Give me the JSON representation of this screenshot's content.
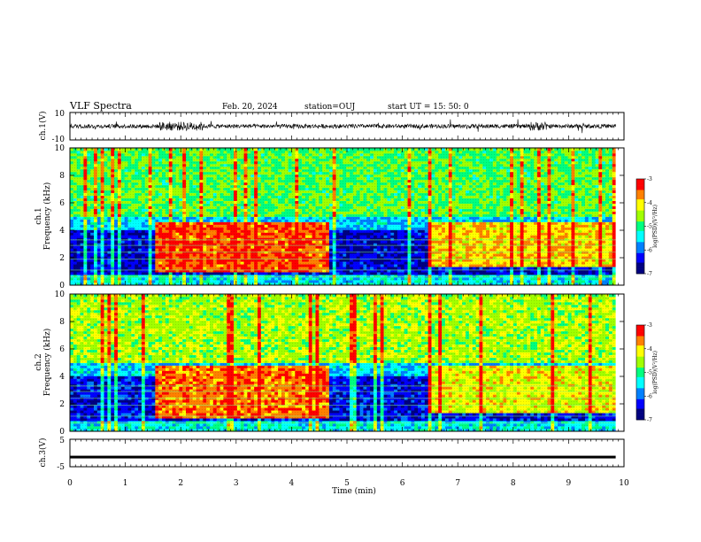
{
  "header": {
    "title": "VLF Spectra",
    "date": "Feb. 20, 2024",
    "station": "station=OUJ",
    "start": "start  UT  =   15: 50: 0"
  },
  "colormap": [
    "#000080",
    "#0000ff",
    "#0080ff",
    "#00ffff",
    "#00ff80",
    "#a0ff00",
    "#ffff00",
    "#ff8000",
    "#ff0000",
    "#ffffff"
  ],
  "chart_data": [
    {
      "type": "line",
      "name": "ch1-waveform",
      "ylabel": "ch.1(V)",
      "ylim": [
        -10,
        10
      ],
      "yticks": [
        "10",
        "-10"
      ],
      "xlim": [
        0,
        10
      ],
      "values_summary": {
        "baseline": 0,
        "typical_amplitude": 1.5,
        "burst_intervals_min": [
          [
            1.6,
            2.4
          ],
          [
            8.3,
            8.6
          ]
        ]
      }
    },
    {
      "type": "heatmap",
      "name": "ch1-spectrogram",
      "ylabel": "ch.1\nFrequency (kHz)",
      "ylim": [
        0,
        10
      ],
      "yticks": [
        "0",
        "2",
        "4",
        "6",
        "8",
        "10"
      ],
      "xlim": [
        0,
        9.85
      ],
      "colorbar": {
        "label": "log(PSD)(V²/Hz)",
        "range": [
          -7,
          -3
        ],
        "ticks": [
          "-3",
          "-4",
          "-5",
          "-6",
          "-7"
        ]
      },
      "events": [
        {
          "t_start": 1.55,
          "t_end": 4.7,
          "f_low_khz": 1.0,
          "f_high_khz": 4.6,
          "log_psd": -3.5
        },
        {
          "t_start": 6.45,
          "t_end": 9.85,
          "f_low_khz": 1.3,
          "f_high_khz": 4.6,
          "log_psd": -4.0
        }
      ],
      "background": {
        "below_4khz_log_psd": -6.5,
        "above_5khz_log_psd": -4.8
      }
    },
    {
      "type": "heatmap",
      "name": "ch2-spectrogram",
      "ylabel": "ch.2\nFrequency (kHz)",
      "ylim": [
        0,
        10
      ],
      "yticks": [
        "0",
        "2",
        "4",
        "6",
        "8",
        "10"
      ],
      "xlim": [
        0,
        9.85
      ],
      "colorbar": {
        "label": "log(PSD)(V²/Hz)",
        "range": [
          -7,
          -3
        ],
        "ticks": [
          "-3",
          "-4",
          "-5",
          "-6",
          "-7"
        ]
      },
      "events": [
        {
          "t_start": 1.55,
          "t_end": 4.7,
          "f_low_khz": 1.0,
          "f_high_khz": 4.8,
          "log_psd": -3.6
        },
        {
          "t_start": 6.45,
          "t_end": 9.85,
          "f_low_khz": 1.3,
          "f_high_khz": 4.8,
          "log_psd": -4.2
        }
      ],
      "background": {
        "below_4khz_log_psd": -6.4,
        "above_5khz_log_psd": -4.5
      }
    },
    {
      "type": "line",
      "name": "ch3-waveform",
      "ylabel": "ch.3(V)",
      "ylim": [
        -5,
        5
      ],
      "yticks": [
        "5",
        "-5"
      ],
      "xlim": [
        0,
        9.85
      ],
      "values_summary": {
        "level": -1.2,
        "thickness": 0.4
      }
    }
  ],
  "xaxis": {
    "label": "Time (min)",
    "ticks": [
      "0",
      "1",
      "2",
      "3",
      "4",
      "5",
      "6",
      "7",
      "8",
      "9",
      "10"
    ]
  }
}
